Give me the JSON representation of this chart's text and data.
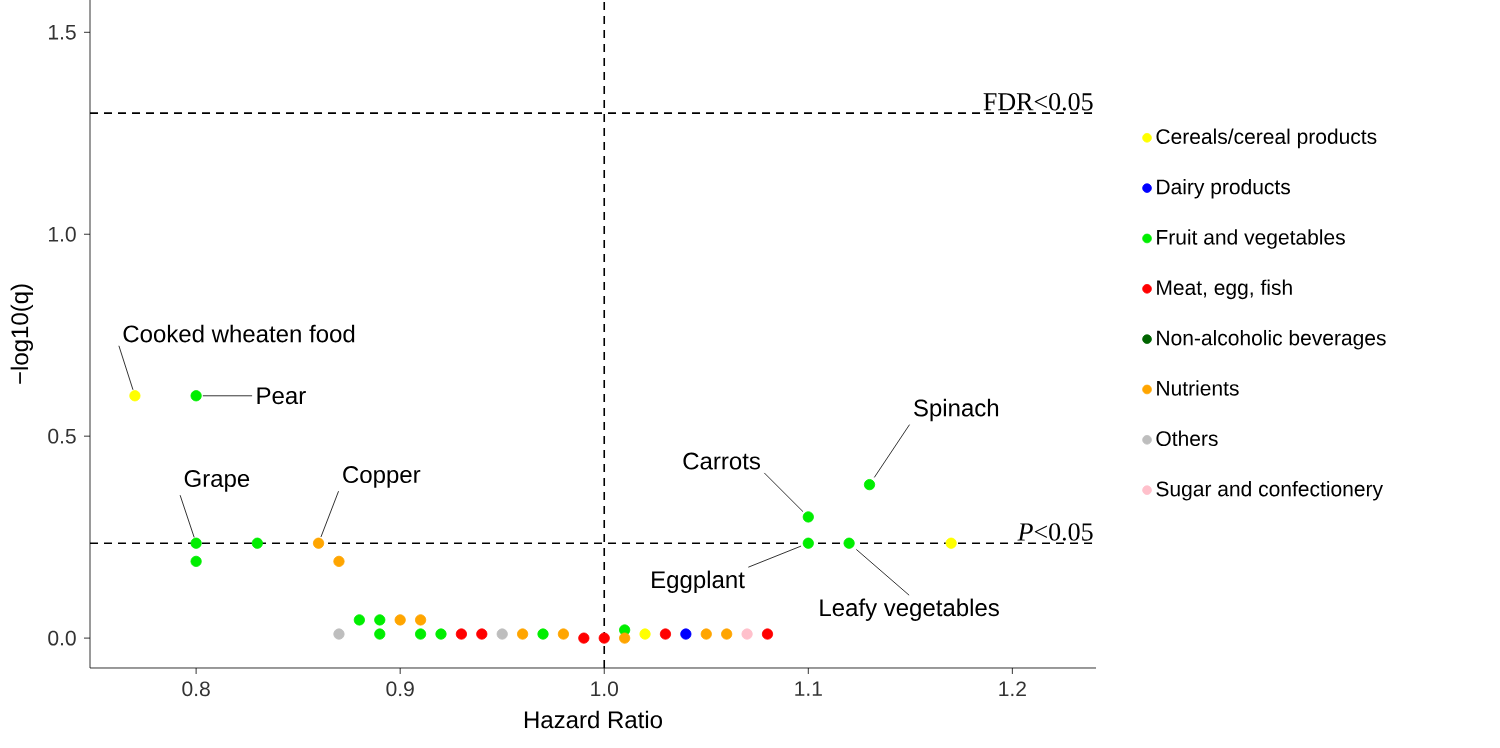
{
  "chart_data": {
    "type": "scatter",
    "xlabel": "Hazard Ratio",
    "ylabel": "−log10(q)",
    "xlim": [
      0.748,
      1.241
    ],
    "ylim": [
      -0.074,
      1.58
    ],
    "xticks": [
      0.8,
      0.9,
      {
        "value": 1.0,
        "label": "1.0"
      },
      1.1,
      1.2
    ],
    "yticks": [
      {
        "value": 0,
        "label": "0.0"
      },
      0.5,
      {
        "value": 1.0,
        "label": "1.0"
      },
      1.5
    ],
    "grid": false,
    "legend": "right",
    "marker": "circle",
    "ref_lines": [
      {
        "axis": "y",
        "value": 1.3,
        "label": "FDR<0.05",
        "line_style": "dashed"
      },
      {
        "axis": "y",
        "value": 0.235,
        "label": "*P*<0.05",
        "line_style": "dashed"
      },
      {
        "axis": "x",
        "value": 1.0,
        "line_style": "dashed"
      }
    ],
    "annotations": [
      {
        "text": "Cooked wheaten food",
        "x": 0.77,
        "y": 0.6
      },
      {
        "text": "Pear",
        "x": 0.8,
        "y": 0.6
      },
      {
        "text": "Grape",
        "x": 0.8,
        "y": 0.235
      },
      {
        "text": "Copper",
        "x": 0.86,
        "y": 0.235
      },
      {
        "text": "Carrots",
        "x": 1.1,
        "y": 0.3
      },
      {
        "text": "Spinach",
        "x": 1.13,
        "y": 0.38
      },
      {
        "text": "Eggplant",
        "x": 1.1,
        "y": 0.235
      },
      {
        "text": "Leafy vegetables",
        "x": 1.12,
        "y": 0.235
      }
    ],
    "series": [
      {
        "name": "Cereals/cereal products",
        "color": "#ffff00",
        "x": [
          0.77,
          1.02,
          1.17
        ],
        "values": [
          0.6,
          0.01,
          0.235
        ]
      },
      {
        "name": "Dairy products",
        "color": "#0000ff",
        "x": [
          1.04
        ],
        "values": [
          0.01
        ]
      },
      {
        "name": "Fruit and vegetables",
        "color": "#00ee00",
        "x": [
          0.8,
          0.8,
          0.8,
          0.83,
          0.88,
          0.89,
          0.89,
          0.91,
          0.92,
          0.97,
          1.01,
          1.1,
          1.1,
          1.12,
          1.13
        ],
        "values": [
          0.6,
          0.235,
          0.19,
          0.235,
          0.045,
          0.045,
          0.01,
          0.01,
          0.01,
          0.01,
          0.02,
          0.3,
          0.235,
          0.235,
          0.38
        ]
      },
      {
        "name": "Meat, egg, fish",
        "color": "#ff0000",
        "x": [
          0.93,
          0.94,
          0.99,
          1.0,
          1.03,
          1.08
        ],
        "values": [
          0.01,
          0.01,
          0.0,
          0.0,
          0.01,
          0.01
        ]
      },
      {
        "name": "Non-alcoholic beverages",
        "color": "#006400"
      },
      {
        "name": "Nutrients",
        "color": "#ffa500",
        "x": [
          0.86,
          0.87,
          0.9,
          0.91,
          0.96,
          0.98,
          1.01,
          1.05,
          1.06
        ],
        "values": [
          0.235,
          0.19,
          0.045,
          0.045,
          0.01,
          0.01,
          0.0,
          0.01,
          0.01
        ]
      },
      {
        "name": "Others",
        "color": "#bebebe",
        "x": [
          0.87,
          0.95
        ],
        "values": [
          0.01,
          0.01
        ]
      },
      {
        "name": "Sugar and confectionery",
        "color": "#ffc0cb",
        "x": [
          1.07
        ],
        "values": [
          0.01
        ]
      }
    ]
  }
}
